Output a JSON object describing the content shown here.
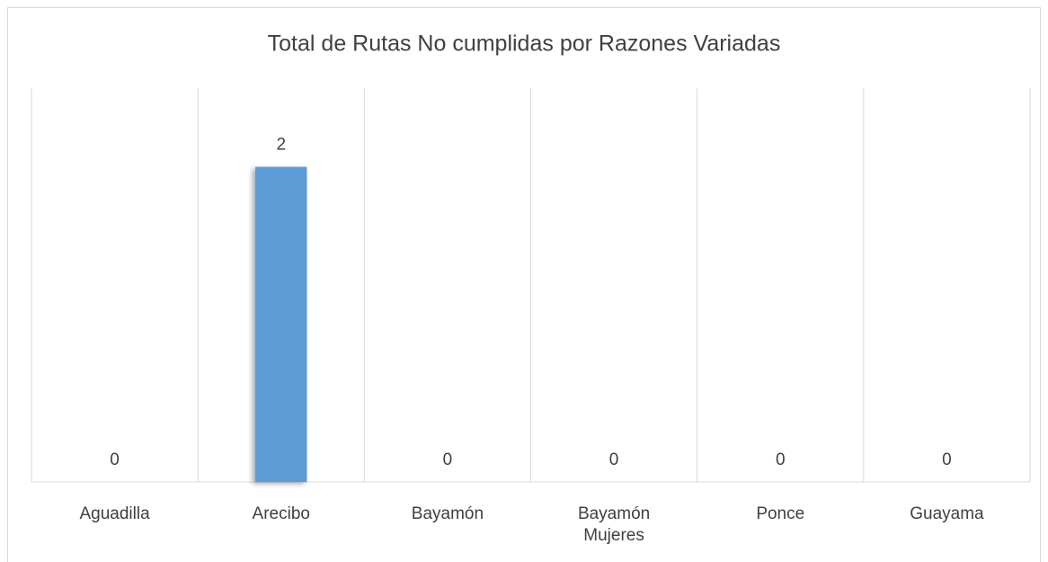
{
  "chart_data": {
    "type": "bar",
    "title": "Total de Rutas No cumplidas por Razones Variadas",
    "categories": [
      "Aguadilla",
      "Arecibo",
      "Bayamón",
      "Bayamón Mujeres",
      "Ponce",
      "Guayama"
    ],
    "values": [
      0,
      2,
      0,
      0,
      0,
      0
    ],
    "color": "#5b9bd5",
    "ylim": [
      0,
      2.5
    ]
  }
}
